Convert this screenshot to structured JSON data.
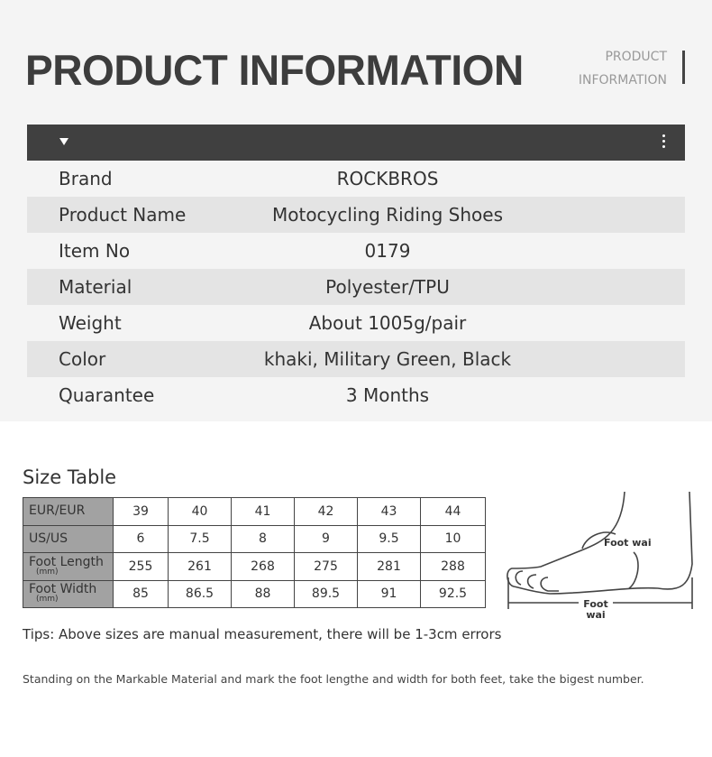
{
  "header": {
    "title": "PRODUCT INFORMATION",
    "subtitle_line1": "PRODUCT",
    "subtitle_line2": "INFORMATION"
  },
  "info_rows": [
    {
      "label": "Brand",
      "value": "ROCKBROS"
    },
    {
      "label": "Product Name",
      "value": "Motocycling Riding Shoes"
    },
    {
      "label": "Item No",
      "value": "0179"
    },
    {
      "label": "Material",
      "value": "Polyester/TPU"
    },
    {
      "label": "Weight",
      "value": "About 1005g/pair"
    },
    {
      "label": "Color",
      "value": "khaki, Military Green, Black"
    },
    {
      "label": "Quarantee",
      "value": "3 Months"
    }
  ],
  "size_table": {
    "title": "Size Table",
    "rows": [
      {
        "label": "EUR/EUR",
        "unit": "",
        "values": [
          "39",
          "40",
          "41",
          "42",
          "43",
          "44"
        ]
      },
      {
        "label": "US/US",
        "unit": "",
        "values": [
          "6",
          "7.5",
          "8",
          "9",
          "9.5",
          "10"
        ]
      },
      {
        "label": "Foot Length",
        "unit": "(mm)",
        "values": [
          "255",
          "261",
          "268",
          "275",
          "281",
          "288"
        ]
      },
      {
        "label": "Foot Width",
        "unit": "(mm)",
        "values": [
          "85",
          "86.5",
          "88",
          "89.5",
          "91",
          "92.5"
        ]
      }
    ]
  },
  "diagram": {
    "width_label": "Foot wai",
    "length_label_line1": "Foot",
    "length_label_line2": "wai"
  },
  "tips": "Tips: Above sizes are manual measurement, there will be 1-3cm errors",
  "note": "Standing on the Markable Material and mark the foot lengthe and width for both feet, take the bigest number."
}
